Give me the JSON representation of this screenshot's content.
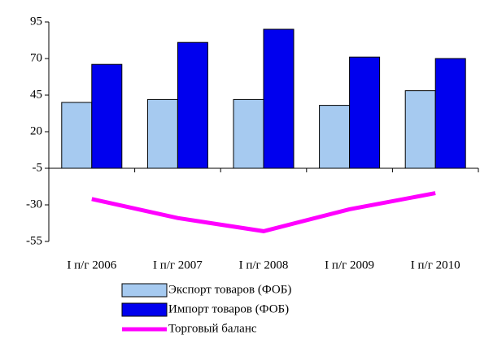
{
  "chart_data": {
    "type": "bar_line",
    "categories": [
      "I п/г 2006",
      "I п/г 2007",
      "I п/г 2008",
      "I п/г 2009",
      "I п/г 2010"
    ],
    "series": [
      {
        "name": "Экспорт товаров (ФОБ)",
        "type": "bar",
        "color": "#a6caf0",
        "values": [
          40,
          42,
          42,
          38,
          48
        ]
      },
      {
        "name": "Импорт товаров (ФОБ)",
        "type": "bar",
        "color": "#0000ee",
        "values": [
          66,
          81,
          90,
          71,
          70
        ]
      },
      {
        "name": "Торговый баланс",
        "type": "line",
        "color": "#ff00ff",
        "values": [
          -26,
          -39,
          -48,
          -33,
          -22
        ]
      }
    ],
    "ylim": [
      -55,
      95
    ],
    "yticks": [
      -55,
      -30,
      -5,
      20,
      45,
      70,
      95
    ],
    "x_axis_crosses": -5,
    "legend": "bottom"
  }
}
